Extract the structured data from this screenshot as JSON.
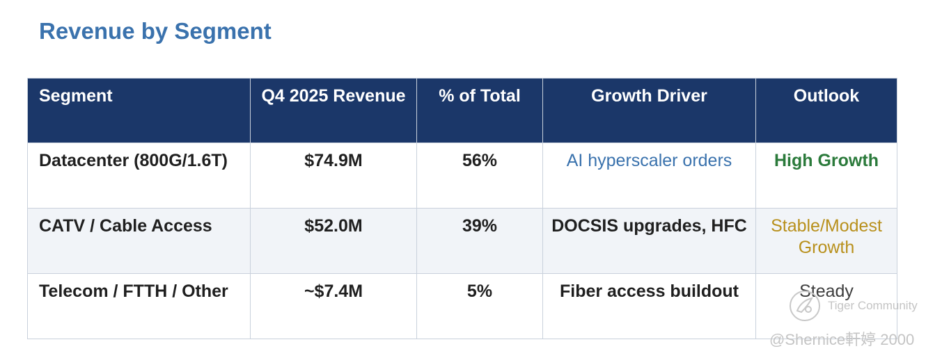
{
  "title": "Revenue by Segment",
  "table": {
    "headers": [
      "Segment",
      "Q4 2025 Revenue",
      "% of Total",
      "Growth Driver",
      "Outlook"
    ],
    "rows": [
      {
        "segment": "Datacenter (800G/1.6T)",
        "revenue": "$74.9M",
        "pct": "56%",
        "driver": "AI hyperscaler orders",
        "outlook": "High Growth"
      },
      {
        "segment": "CATV / Cable Access",
        "revenue": "$52.0M",
        "pct": "39%",
        "driver": "DOCSIS upgrades, HFC",
        "outlook": "Stable/Modest Growth"
      },
      {
        "segment": "Telecom / FTTH / Other",
        "revenue": "~$7.4M",
        "pct": "5%",
        "driver": "Fiber access buildout",
        "outlook": "Steady"
      }
    ]
  },
  "colors": {
    "title": "#3a72ad",
    "header_bg": "#1b3769",
    "driver_blue": "#3a72ad",
    "outlook_high": "#2b7a3b",
    "outlook_stable": "#b8901c",
    "outlook_steady": "#3d3d3d"
  },
  "watermark": {
    "brand": "Tiger Community",
    "user": "@Shernice軒婷 2000",
    "icon": "tiger-community-logo-icon"
  }
}
